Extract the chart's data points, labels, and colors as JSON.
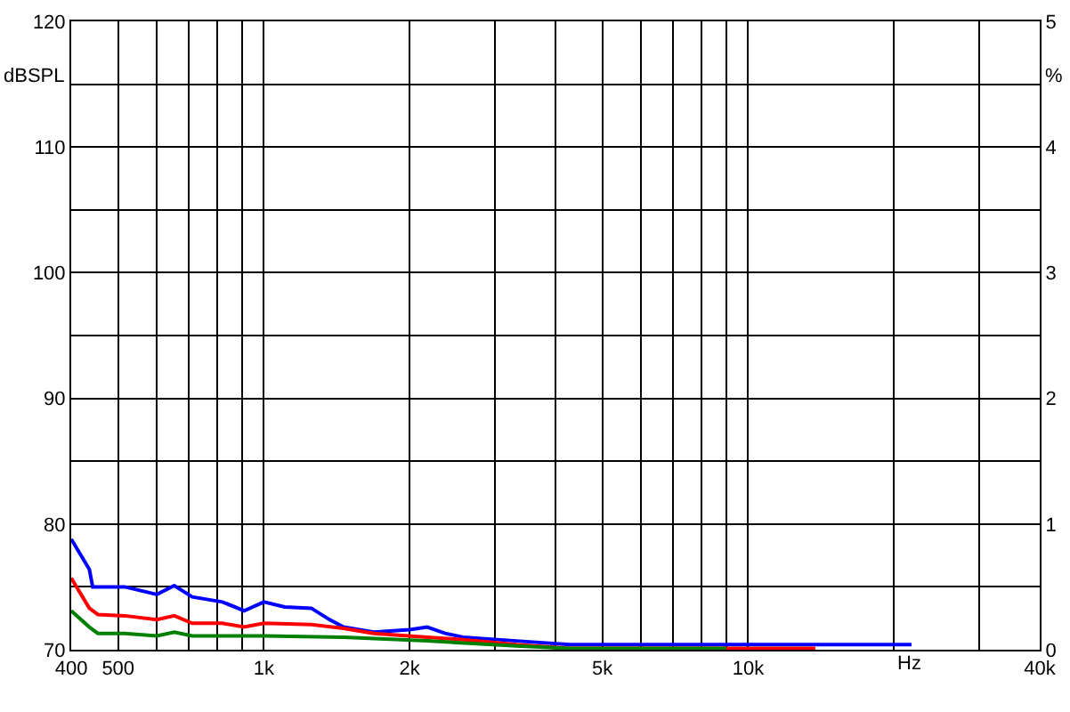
{
  "chart_data": {
    "type": "line",
    "xlabel": "Hz",
    "ylabel": "dBSPL",
    "y2label": "%",
    "log": "x",
    "grid": true,
    "marker": "none",
    "line_style": "solid",
    "xlim": [
      400,
      40000
    ],
    "xticks": [
      400,
      500,
      {
        "value": 600,
        "label": null
      },
      {
        "value": 700,
        "label": null
      },
      {
        "value": 800,
        "label": null
      },
      {
        "value": 900,
        "label": null
      },
      {
        "value": 1000,
        "label": "1k"
      },
      {
        "value": 2000,
        "label": "2k"
      },
      {
        "value": 3000,
        "label": null
      },
      {
        "value": 4000,
        "label": null
      },
      {
        "value": 5000,
        "label": "5k"
      },
      {
        "value": 6000,
        "label": null
      },
      {
        "value": 7000,
        "label": null
      },
      {
        "value": 8000,
        "label": null
      },
      {
        "value": 9000,
        "label": null
      },
      {
        "value": 10000,
        "label": "10k"
      },
      {
        "value": 20000,
        "label": null
      },
      {
        "value": 30000,
        "label": null
      },
      {
        "value": 40000,
        "label": "40k"
      }
    ],
    "ylim": [
      70,
      120
    ],
    "yticks": [
      70,
      {
        "value": 75,
        "label": null
      },
      80,
      {
        "value": 85,
        "label": null
      },
      90,
      {
        "value": 95,
        "label": null
      },
      100,
      {
        "value": 105,
        "label": null
      },
      110,
      {
        "value": 115,
        "label": null
      },
      120
    ],
    "y2lim": [
      0,
      5
    ],
    "y2ticks": [
      0,
      {
        "value": 0.5,
        "label": null
      },
      1,
      {
        "value": 1.5,
        "label": null
      },
      2,
      {
        "value": 2.5,
        "label": null
      },
      3,
      {
        "value": 3.5,
        "label": null
      },
      4,
      {
        "value": 4.5,
        "label": null
      },
      5
    ],
    "series": [
      {
        "color": "#0000ff",
        "axis": "y2",
        "x": [
          400,
          436,
          443,
          516,
          601,
          653,
          711,
          821,
          910,
          1000,
          1104,
          1253,
          1365,
          1460,
          1687,
          2000,
          2173,
          2367,
          2576,
          3320,
          4276,
          7113,
          16600,
          21740
        ],
        "values": [
          0.88,
          0.64,
          0.5,
          0.5,
          0.44,
          0.51,
          0.42,
          0.38,
          0.31,
          0.38,
          0.34,
          0.33,
          0.24,
          0.18,
          0.14,
          0.16,
          0.18,
          0.13,
          0.1,
          0.07,
          0.04,
          0.04,
          0.04,
          0.04
        ]
      },
      {
        "color": "#ff0000",
        "axis": "y2",
        "x": [
          400,
          436,
          454,
          516,
          601,
          653,
          711,
          821,
          910,
          1000,
          1253,
          1460,
          1687,
          2173,
          2576,
          3320,
          4276,
          13760
        ],
        "values": [
          0.57,
          0.33,
          0.28,
          0.27,
          0.24,
          0.27,
          0.21,
          0.21,
          0.18,
          0.21,
          0.2,
          0.17,
          0.13,
          0.1,
          0.08,
          0.04,
          0.01,
          0.01
        ]
      },
      {
        "color": "#008000",
        "axis": "y2",
        "x": [
          400,
          436,
          454,
          516,
          601,
          653,
          711,
          1000,
          1460,
          2173,
          3320,
          4276,
          9000
        ],
        "values": [
          0.31,
          0.18,
          0.13,
          0.13,
          0.11,
          0.14,
          0.11,
          0.11,
          0.1,
          0.07,
          0.03,
          0.01,
          0.01
        ]
      }
    ]
  }
}
